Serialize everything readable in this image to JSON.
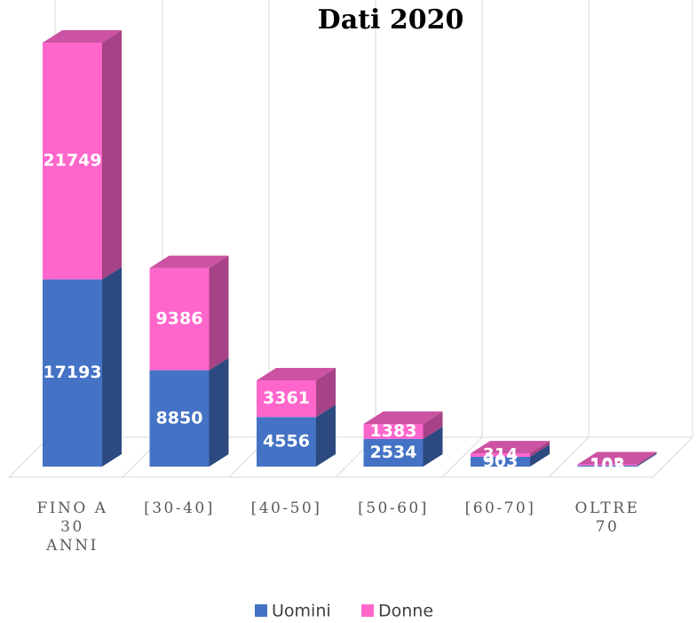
{
  "chart_data": {
    "type": "bar3d_stacked",
    "title": "Dati 2020",
    "categories": [
      "FINO A 30 ANNI",
      "[30-40]",
      "[40-50]",
      "[50-60]",
      "[60-70]",
      "OLTRE 70"
    ],
    "series": [
      {
        "name": "Uomini",
        "color": "#4472c4",
        "values": [
          17193,
          8850,
          4556,
          2534,
          903,
          105
        ]
      },
      {
        "name": "Donne",
        "color": "#ff66cc",
        "values": [
          21749,
          9386,
          3361,
          1383,
          314,
          102
        ]
      }
    ],
    "legend": "bottom"
  }
}
